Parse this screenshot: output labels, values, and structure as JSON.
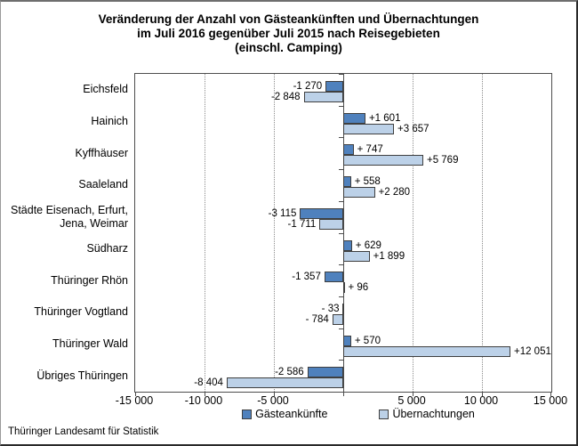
{
  "title": {
    "lines": [
      "Veränderung der Anzahl von Gästeankünften und Übernachtungen",
      "im Juli 2016 gegenüber Juli 2015 nach Reisegebieten",
      "(einschl. Camping)"
    ]
  },
  "footer": {
    "source": "Thüringer Landesamt für Statistik"
  },
  "colors": {
    "arrivals_fill": "#4f81bd",
    "nights_fill": "#bcd1e8",
    "bar_border": "#3f3f3f",
    "axis": "#4d4d4d",
    "grid": "#8c8c8c"
  },
  "legend": {
    "items": [
      {
        "label": "Gästeankünfte",
        "series": "arrivals"
      },
      {
        "label": "Übernachtungen",
        "series": "nights"
      }
    ]
  },
  "chart_data": {
    "type": "bar",
    "orientation": "horizontal",
    "title": "Veränderung der Anzahl von Gästeankünften und Übernachtungen im Juli 2016 gegenüber Juli 2015 nach Reisegebieten (einschl. Camping)",
    "categories": [
      "Eichsfeld",
      "Hainich",
      "Kyffhäuser",
      "Saaleland",
      "Städte Eisenach, Erfurt,\nJena, Weimar",
      "Südharz",
      "Thüringer Rhön",
      "Thüringer Vogtland",
      "Thüringer Wald",
      "Übriges Thüringen"
    ],
    "series": [
      {
        "name": "Gästeankünfte",
        "values": [
          -1270,
          1601,
          747,
          558,
          -3115,
          629,
          -1357,
          -33,
          570,
          -2586
        ],
        "data_labels": [
          "-1 270",
          "+1 601",
          "+ 747",
          "+ 558",
          "-3 115",
          "+ 629",
          "-1 357",
          "- 33",
          "+ 570",
          "-2 586"
        ]
      },
      {
        "name": "Übernachtungen",
        "values": [
          -2848,
          3657,
          5769,
          2280,
          -1711,
          1899,
          96,
          -784,
          12051,
          -8404
        ],
        "data_labels": [
          "-2 848",
          "+3 657",
          "+5 769",
          "+2 280",
          "-1 711",
          "+1 899",
          "+ 96",
          "- 784",
          "+12 051",
          "-8 404"
        ]
      }
    ],
    "xlim": [
      -15000,
      15000
    ],
    "x_ticks": [
      -15000,
      -10000,
      -5000,
      0,
      5000,
      10000,
      15000
    ],
    "x_tick_labels": [
      "-15 000",
      "-10 000",
      "-5 000",
      "",
      "5 000",
      "10 000",
      "15 000"
    ],
    "grid": "vertical-dotted",
    "legend_position": "bottom"
  }
}
